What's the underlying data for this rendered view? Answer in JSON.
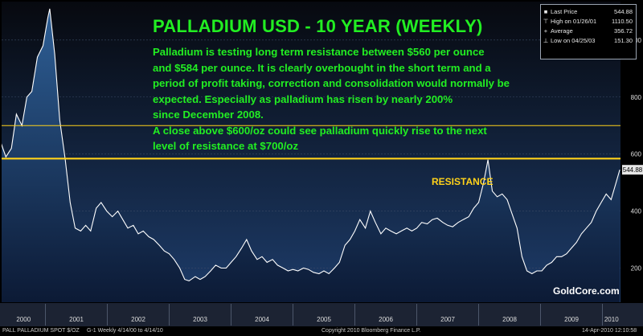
{
  "title": "PALLADIUM USD - 10 YEAR (WEEKLY)",
  "commentary": [
    "Palladium is testing long term resistance between $560 per ounce",
    "and $584 per ounce. It is clearly overbought in the short term and a",
    "period of profit taking, correction and consolidation would normally be",
    "expected. Especially as palladium has risen by nearly 200%",
    "since December 2008.",
    "A close above $600/oz could see palladium quickly rise to the next",
    "level of resistance at $700/oz"
  ],
  "resistance_label": "RESISTANCE",
  "watermark": "GoldCore.com",
  "legend": {
    "rows": [
      {
        "symbol": "square",
        "label": "Last Price",
        "value": "544.88"
      },
      {
        "symbol": "high",
        "label": "High on 01/26/01",
        "value": "1110.50"
      },
      {
        "symbol": "average",
        "label": "Average",
        "value": "356.72"
      },
      {
        "symbol": "low",
        "label": "Low on 04/25/03",
        "value": "151.30"
      }
    ]
  },
  "last_price_tag": "544.88",
  "footer": {
    "left": "PALL PALLADIUM SPOT $/OZ",
    "mid": "G-1   Weekly  4/14/00 to 4/14/10",
    "copyright": "Copyright 2010 Bloomberg Finance L.P.",
    "timestamp": "14-Apr-2010 12:10:58"
  },
  "colors": {
    "background": "#000000",
    "plot_top": "#07090f",
    "plot_bottom": "#1d3c6a",
    "area_top": "#2e5f96",
    "area_bottom": "#0c1a35",
    "price_line": "#ffffff",
    "resistance_line": "#ffd21a",
    "text_green": "#22ee22",
    "resistance_text": "#ffd21a"
  },
  "chart_data": {
    "type": "area",
    "title": "PALLADIUM USD - 10 YEAR (WEEKLY)",
    "x_range": [
      "2000-04-14",
      "2010-04-14"
    ],
    "x_tick_labels": [
      "2000",
      "2001",
      "2002",
      "2003",
      "2004",
      "2005",
      "2006",
      "2007",
      "2008",
      "2009",
      "2010"
    ],
    "y_tick_values": [
      200,
      400,
      600,
      800,
      1000
    ],
    "ylim": [
      80,
      1135
    ],
    "grid": "horizontal",
    "legend_position": "top-right",
    "resistance_levels": [
      700,
      584
    ],
    "series": [
      {
        "name": "PALL PALLADIUM SPOT $/OZ",
        "x": [
          2000.28,
          2000.36,
          2000.45,
          2000.53,
          2000.62,
          2000.7,
          2000.78,
          2000.87,
          2000.96,
          2001.04,
          2001.07,
          2001.15,
          2001.23,
          2001.32,
          2001.4,
          2001.48,
          2001.57,
          2001.65,
          2001.73,
          2001.82,
          2001.9,
          2001.99,
          2002.08,
          2002.17,
          2002.25,
          2002.33,
          2002.42,
          2002.5,
          2002.58,
          2002.67,
          2002.75,
          2002.84,
          2002.92,
          2003.0,
          2003.08,
          2003.17,
          2003.25,
          2003.32,
          2003.42,
          2003.5,
          2003.58,
          2003.67,
          2003.75,
          2003.84,
          2003.92,
          2004.0,
          2004.08,
          2004.17,
          2004.25,
          2004.33,
          2004.42,
          2004.5,
          2004.58,
          2004.67,
          2004.75,
          2004.84,
          2004.92,
          2005.0,
          2005.08,
          2005.17,
          2005.25,
          2005.33,
          2005.42,
          2005.5,
          2005.58,
          2005.67,
          2005.75,
          2005.84,
          2005.92,
          2006.0,
          2006.08,
          2006.17,
          2006.25,
          2006.33,
          2006.42,
          2006.5,
          2006.58,
          2006.67,
          2006.75,
          2006.84,
          2006.92,
          2007.0,
          2007.08,
          2007.17,
          2007.25,
          2007.33,
          2007.42,
          2007.5,
          2007.58,
          2007.67,
          2007.75,
          2007.84,
          2007.92,
          2008.0,
          2008.08,
          2008.15,
          2008.22,
          2008.3,
          2008.38,
          2008.46,
          2008.54,
          2008.62,
          2008.7,
          2008.78,
          2008.86,
          2008.94,
          2009.02,
          2009.1,
          2009.18,
          2009.26,
          2009.34,
          2009.42,
          2009.5,
          2009.58,
          2009.66,
          2009.74,
          2009.82,
          2009.9,
          2009.98,
          2010.06,
          2010.14,
          2010.22,
          2010.28
        ],
        "values": [
          640,
          590,
          620,
          740,
          700,
          800,
          820,
          940,
          980,
          1080,
          1110,
          950,
          720,
          580,
          430,
          340,
          330,
          350,
          330,
          410,
          430,
          400,
          380,
          400,
          370,
          340,
          350,
          320,
          330,
          310,
          300,
          280,
          260,
          250,
          230,
          200,
          160,
          155,
          170,
          160,
          170,
          190,
          210,
          200,
          200,
          220,
          240,
          270,
          300,
          260,
          230,
          240,
          220,
          230,
          210,
          200,
          190,
          195,
          190,
          200,
          195,
          185,
          180,
          190,
          180,
          200,
          220,
          280,
          300,
          330,
          370,
          340,
          400,
          360,
          320,
          340,
          330,
          320,
          330,
          340,
          330,
          340,
          360,
          355,
          370,
          375,
          360,
          350,
          345,
          360,
          370,
          380,
          410,
          430,
          500,
          580,
          470,
          450,
          460,
          440,
          390,
          340,
          240,
          190,
          180,
          190,
          190,
          210,
          220,
          240,
          240,
          250,
          270,
          290,
          320,
          340,
          360,
          400,
          430,
          460,
          440,
          500,
          545
        ]
      }
    ]
  }
}
